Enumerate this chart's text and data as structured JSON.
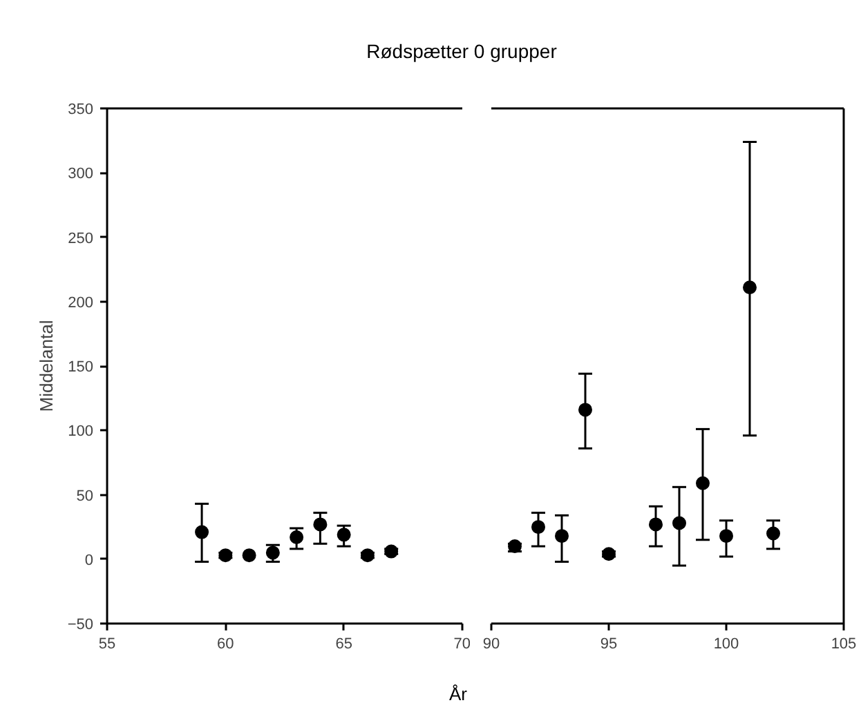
{
  "chart_data": [
    {
      "type": "scatter",
      "title": "Rødspætter 0 grupper",
      "ylabel": "Middelantal",
      "xlim": [
        55,
        70
      ],
      "xticks": [
        55,
        60,
        65,
        70
      ],
      "ylim": [
        -50,
        350
      ],
      "yticks": [
        -50,
        0,
        50,
        100,
        150,
        200,
        250,
        300,
        350
      ],
      "marker": "circle",
      "series": [
        {
          "color": "#000000",
          "x": [
            59,
            60,
            61,
            62,
            63,
            64,
            65,
            66,
            67
          ],
          "values": [
            21,
            3,
            3,
            5,
            17,
            27,
            19,
            3,
            6
          ],
          "errors": [
            [
              -2,
              43
            ],
            [
              1,
              5
            ],
            null,
            [
              -2,
              11
            ],
            [
              8,
              24
            ],
            [
              12,
              36
            ],
            [
              10,
              26
            ],
            [
              1,
              5
            ],
            [
              4,
              8
            ]
          ]
        }
      ]
    },
    {
      "type": "scatter",
      "xlabel": "År",
      "xlim": [
        90,
        105
      ],
      "xticks": [
        90,
        95,
        100,
        105
      ],
      "ylim": [
        -50,
        350
      ],
      "yticks": [
        -50,
        0,
        50,
        100,
        150,
        200,
        250,
        300,
        350
      ],
      "marker": "circle",
      "tick_labels": "x",
      "series": [
        {
          "color": "#000000",
          "x": [
            91,
            92,
            93,
            94,
            95,
            97,
            98,
            99,
            100,
            101,
            102
          ],
          "values": [
            10,
            25,
            18,
            116,
            4,
            27,
            28,
            59,
            18,
            211,
            20
          ],
          "errors": [
            [
              6,
              12
            ],
            [
              10,
              36
            ],
            [
              -2,
              34
            ],
            [
              86,
              144
            ],
            [
              2,
              6
            ],
            [
              10,
              41
            ],
            [
              -5,
              56
            ],
            [
              15,
              101
            ],
            [
              2,
              30
            ],
            [
              96,
              324
            ],
            [
              8,
              30
            ]
          ]
        }
      ]
    }
  ]
}
